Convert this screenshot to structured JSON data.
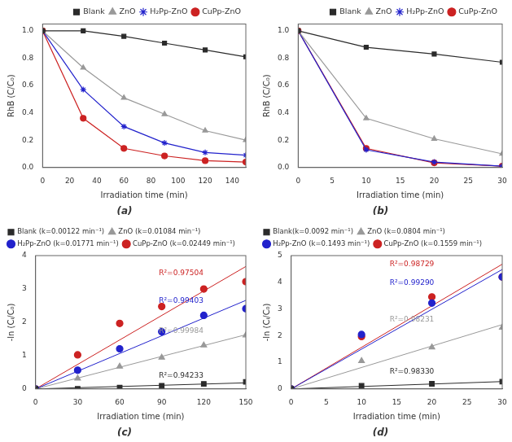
{
  "chart_data": [
    {
      "type": "line",
      "title": "(a)",
      "xlabel": "Irradiation time (min)",
      "ylabel": "RhB (C/C₀)",
      "xlim": [
        0,
        150
      ],
      "ylim": [
        0,
        1.05
      ],
      "xticks": [
        0,
        20,
        40,
        60,
        80,
        100,
        120,
        140
      ],
      "yticks": [
        {
          "value": 0,
          "label": "0.0"
        },
        0.2,
        0.4,
        0.6,
        0.8,
        {
          "value": 1,
          "label": "1.0"
        }
      ],
      "grid": false,
      "legend": "upper right",
      "x": [
        0,
        30,
        60,
        90,
        120,
        150
      ],
      "series": [
        {
          "name": "Blank",
          "color": "#2b2b2b",
          "marker": "square",
          "line_style": "solid",
          "values": [
            1.0,
            1.0,
            0.96,
            0.91,
            0.86,
            0.81
          ]
        },
        {
          "name": "ZnO",
          "color": "#999999",
          "marker": "triangle",
          "line_style": "solid",
          "values": [
            1.0,
            0.73,
            0.51,
            0.39,
            0.27,
            0.2
          ]
        },
        {
          "name": "H₂Pp-ZnO",
          "color": "#2222cc",
          "marker": "star",
          "line_style": "solid",
          "values": [
            1.0,
            0.57,
            0.3,
            0.18,
            0.11,
            0.09
          ]
        },
        {
          "name": "CuPp-ZnO",
          "color": "#cc2222",
          "marker": "circle",
          "line_style": "solid",
          "values": [
            1.0,
            0.36,
            0.14,
            0.085,
            0.05,
            0.04
          ]
        }
      ]
    },
    {
      "type": "line",
      "title": "(b)",
      "xlabel": "Irradiation time (min)",
      "ylabel": "RhB (C/C₀)",
      "xlim": [
        0,
        30
      ],
      "ylim": [
        0,
        1.05
      ],
      "xticks": [
        0,
        5,
        10,
        15,
        20,
        25,
        30
      ],
      "yticks": [
        {
          "value": 0,
          "label": "0.0"
        },
        0.2,
        0.4,
        0.6,
        0.8,
        {
          "value": 1,
          "label": "1.0"
        }
      ],
      "grid": false,
      "legend": "upper right",
      "x": [
        0,
        10,
        20,
        30
      ],
      "series": [
        {
          "name": "Blank",
          "color": "#2b2b2b",
          "marker": "square",
          "line_style": "solid",
          "values": [
            1.0,
            0.88,
            0.83,
            0.77
          ]
        },
        {
          "name": "ZnO",
          "color": "#999999",
          "marker": "triangle",
          "line_style": "solid",
          "values": [
            1.0,
            0.36,
            0.21,
            0.1
          ]
        },
        {
          "name": "H₂Pp-ZnO",
          "color": "#2222cc",
          "marker": "star",
          "line_style": "solid",
          "values": [
            1.0,
            0.13,
            0.04,
            0.01
          ]
        },
        {
          "name": "CuPp-ZnO",
          "color": "#cc2222",
          "marker": "circle",
          "line_style": "solid",
          "values": [
            1.0,
            0.14,
            0.034,
            0.01
          ]
        }
      ]
    },
    {
      "type": "scatter",
      "title": "(c)",
      "xlabel": "Irradiation time (min)",
      "ylabel": "-ln (Cᵢ/C₀)",
      "xlim": [
        0,
        150
      ],
      "ylim": [
        0,
        4
      ],
      "xticks": [
        0,
        30,
        60,
        90,
        120,
        150
      ],
      "yticks": [
        0,
        1,
        2,
        3,
        4
      ],
      "grid": false,
      "legend": "upper left",
      "series": [
        {
          "name": "Blank (k=0.00122 min⁻¹)",
          "color": "#2b2b2b",
          "marker": "square",
          "x": [
            0,
            30,
            60,
            90,
            120,
            150
          ],
          "values": [
            0.0,
            0.0,
            0.04,
            0.094,
            0.151,
            0.211
          ],
          "fit_x": [
            0,
            150
          ],
          "fit_values": [
            0,
            0.183
          ]
        },
        {
          "name": "ZnO (k=0.01084 min⁻¹)",
          "color": "#999999",
          "marker": "triangle",
          "x": [
            0,
            30,
            60,
            90,
            120,
            150
          ],
          "values": [
            0.0,
            0.315,
            0.673,
            0.942,
            1.309,
            1.61
          ],
          "fit_x": [
            0,
            150
          ],
          "fit_values": [
            0,
            1.626
          ]
        },
        {
          "name": "H₂Pp-ZnO (k=0.01771 min⁻¹)",
          "color": "#2222cc",
          "marker": "circle",
          "x": [
            0,
            30,
            60,
            90,
            120,
            150
          ],
          "values": [
            0.0,
            0.562,
            1.204,
            1.715,
            2.207,
            2.408
          ],
          "fit_x": [
            0,
            150
          ],
          "fit_values": [
            0,
            2.6565
          ]
        },
        {
          "name": "CuPp-ZnO (k=0.02449 min⁻¹)",
          "color": "#cc2222",
          "marker": "circle",
          "x": [
            0,
            30,
            60,
            90,
            120,
            150
          ],
          "values": [
            0.0,
            1.022,
            1.966,
            2.472,
            2.996,
            3.219
          ],
          "fit_x": [
            0,
            150
          ],
          "fit_values": [
            0,
            3.6735
          ]
        }
      ],
      "annotations": [
        {
          "text": "R²=0.94233",
          "x": 88,
          "y": 0.33,
          "color": "#2b2b2b"
        },
        {
          "text": "R²=0.99984",
          "x": 88,
          "y": 1.68,
          "color": "#999999"
        },
        {
          "text": "R²=0.99403",
          "x": 88,
          "y": 2.58,
          "color": "#2222cc"
        },
        {
          "text": "R²=0.97504",
          "x": 88,
          "y": 3.42,
          "color": "#cc2222"
        }
      ]
    },
    {
      "type": "scatter",
      "title": "(d)",
      "xlabel": "Irradiation time (min)",
      "ylabel": "-ln (Cᵢ/C₀)",
      "xlim": [
        0,
        30
      ],
      "ylim": [
        0,
        5
      ],
      "xticks": [
        0,
        5,
        10,
        15,
        20,
        25,
        30
      ],
      "yticks": [
        0,
        1,
        2,
        3,
        4,
        5
      ],
      "grid": false,
      "legend": "upper left",
      "series": [
        {
          "name": "Blank(k=0.0092 min⁻¹)",
          "color": "#2b2b2b",
          "marker": "square",
          "x": [
            0,
            10,
            20,
            30
          ],
          "values": [
            0.0,
            0.117,
            0.193,
            0.274
          ],
          "fit_x": [
            0,
            30
          ],
          "fit_values": [
            0,
            0.276
          ]
        },
        {
          "name": "ZnO (k=0.0804 min⁻¹)",
          "color": "#999999",
          "marker": "triangle",
          "x": [
            0,
            10,
            20,
            30
          ],
          "values": [
            0.0,
            1.05,
            1.561,
            2.303
          ],
          "fit_x": [
            0,
            30
          ],
          "fit_values": [
            0,
            2.412
          ]
        },
        {
          "name": "H₂Pp-ZnO (k=0.1493 min⁻¹)",
          "color": "#2222cc",
          "marker": "circle",
          "x": [
            0,
            10,
            20,
            30
          ],
          "values": [
            0.0,
            2.04,
            3.219,
            4.2
          ],
          "fit_x": [
            0,
            30
          ],
          "fit_values": [
            0,
            4.479
          ]
        },
        {
          "name": "CuPp-ZnO (k=0.1559 min⁻¹)",
          "color": "#cc2222",
          "marker": "circle",
          "x": [
            0,
            10,
            20,
            30
          ],
          "values": [
            0.0,
            1.966,
            3.45,
            4.2
          ],
          "fit_x": [
            0,
            30
          ],
          "fit_values": [
            0,
            4.677
          ]
        }
      ],
      "annotations": [
        {
          "text": "R²=0.98330",
          "x": 14,
          "y": 0.58,
          "color": "#2b2b2b"
        },
        {
          "text": "R²=0.98231",
          "x": 14,
          "y": 2.52,
          "color": "#999999"
        },
        {
          "text": "R²=0.99290",
          "x": 14,
          "y": 3.9,
          "color": "#2222cc"
        },
        {
          "text": "R²=0.98729",
          "x": 14,
          "y": 4.6,
          "color": "#cc2222"
        }
      ]
    }
  ]
}
